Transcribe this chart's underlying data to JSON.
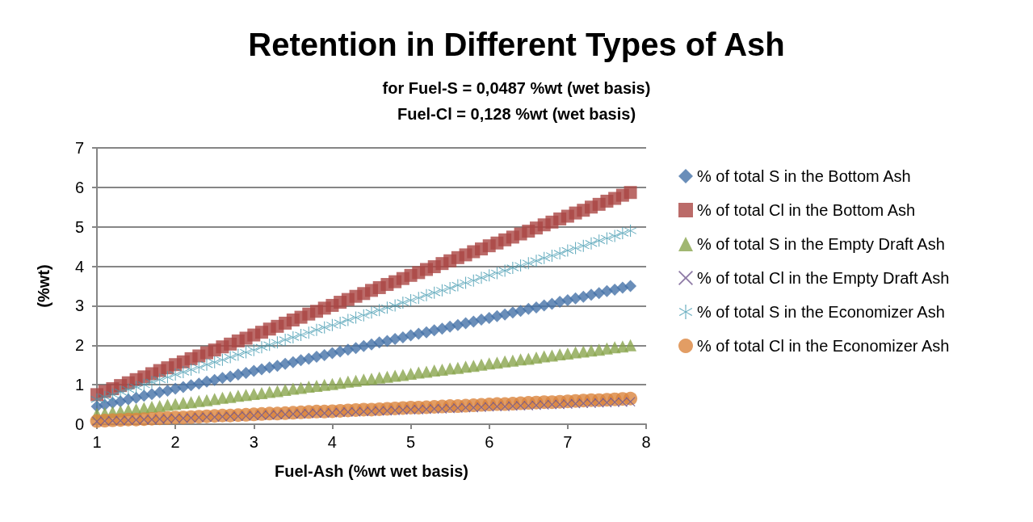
{
  "chart_data": {
    "type": "scatter",
    "title": "Retention in Different Types of Ash",
    "subtitle": "for Fuel-S = 0,0487 %wt (wet basis)\nFuel-Cl = 0,128 %wt (wet basis)",
    "xlabel": "Fuel-Ash (%wt wet basis)",
    "ylabel": "(%wt)",
    "x": [
      1.0,
      1.1,
      1.2,
      1.3,
      1.4,
      1.5,
      1.6,
      1.7,
      1.8,
      1.9,
      2.0,
      2.1,
      2.2,
      2.3,
      2.4,
      2.5,
      2.6,
      2.7,
      2.8,
      2.9,
      3.0,
      3.1,
      3.2,
      3.3,
      3.4,
      3.5,
      3.6,
      3.7,
      3.8,
      3.9,
      4.0,
      4.1,
      4.2,
      4.3,
      4.4,
      4.5,
      4.6,
      4.7,
      4.8,
      4.9,
      5.0,
      5.1,
      5.2,
      5.3,
      5.4,
      5.5,
      5.6,
      5.7,
      5.8,
      5.9,
      6.0,
      6.1,
      6.2,
      6.3,
      6.4,
      6.5,
      6.6,
      6.7,
      6.8,
      6.9,
      7.0,
      7.1,
      7.2,
      7.3,
      7.4,
      7.5,
      7.6,
      7.7,
      7.8
    ],
    "series": [
      {
        "name": "% of total S in the Bottom Ash",
        "color": "#4572a7",
        "marker": "diamond",
        "values": [
          0.45,
          0.49,
          0.54,
          0.58,
          0.63,
          0.67,
          0.72,
          0.76,
          0.81,
          0.85,
          0.9,
          0.94,
          0.99,
          1.03,
          1.08,
          1.12,
          1.17,
          1.21,
          1.26,
          1.3,
          1.35,
          1.39,
          1.44,
          1.48,
          1.53,
          1.57,
          1.62,
          1.66,
          1.71,
          1.75,
          1.8,
          1.84,
          1.89,
          1.93,
          1.98,
          2.02,
          2.07,
          2.11,
          2.16,
          2.2,
          2.25,
          2.29,
          2.33,
          2.38,
          2.42,
          2.47,
          2.51,
          2.56,
          2.6,
          2.65,
          2.69,
          2.74,
          2.78,
          2.83,
          2.87,
          2.92,
          2.96,
          3.01,
          3.05,
          3.1,
          3.14,
          3.19,
          3.23,
          3.28,
          3.32,
          3.37,
          3.41,
          3.46,
          3.5
        ]
      },
      {
        "name": "% of total Cl in the Bottom Ash",
        "color": "#aa4643",
        "marker": "square",
        "values": [
          0.75,
          0.83,
          0.9,
          0.98,
          1.05,
          1.13,
          1.2,
          1.28,
          1.36,
          1.43,
          1.51,
          1.58,
          1.66,
          1.73,
          1.81,
          1.88,
          1.96,
          2.03,
          2.11,
          2.18,
          2.26,
          2.33,
          2.41,
          2.48,
          2.56,
          2.64,
          2.71,
          2.79,
          2.86,
          2.94,
          3.01,
          3.09,
          3.16,
          3.24,
          3.31,
          3.39,
          3.46,
          3.54,
          3.61,
          3.69,
          3.77,
          3.84,
          3.92,
          3.99,
          4.07,
          4.14,
          4.22,
          4.29,
          4.37,
          4.44,
          4.52,
          4.59,
          4.67,
          4.74,
          4.82,
          4.89,
          4.97,
          5.05,
          5.12,
          5.2,
          5.27,
          5.35,
          5.42,
          5.5,
          5.57,
          5.65,
          5.72,
          5.8,
          5.87
        ]
      },
      {
        "name": "% of total S in the Empty Draft Ash",
        "color": "#89a54e",
        "marker": "triangle",
        "values": [
          0.26,
          0.28,
          0.31,
          0.33,
          0.36,
          0.38,
          0.41,
          0.44,
          0.46,
          0.49,
          0.51,
          0.54,
          0.56,
          0.59,
          0.61,
          0.64,
          0.67,
          0.69,
          0.72,
          0.74,
          0.77,
          0.79,
          0.82,
          0.84,
          0.87,
          0.9,
          0.92,
          0.95,
          0.97,
          1.0,
          1.02,
          1.05,
          1.08,
          1.1,
          1.13,
          1.15,
          1.18,
          1.2,
          1.23,
          1.25,
          1.28,
          1.31,
          1.33,
          1.36,
          1.38,
          1.41,
          1.43,
          1.46,
          1.48,
          1.51,
          1.54,
          1.56,
          1.59,
          1.61,
          1.64,
          1.66,
          1.69,
          1.72,
          1.74,
          1.77,
          1.79,
          1.82,
          1.84,
          1.87,
          1.89,
          1.92,
          1.95,
          1.97,
          2.0
        ]
      },
      {
        "name": "% of total Cl in the Empty Draft Ash",
        "color": "#71588f",
        "marker": "cross",
        "values": [
          0.07,
          0.08,
          0.09,
          0.09,
          0.1,
          0.11,
          0.12,
          0.12,
          0.13,
          0.14,
          0.15,
          0.15,
          0.16,
          0.17,
          0.18,
          0.18,
          0.19,
          0.2,
          0.2,
          0.21,
          0.22,
          0.23,
          0.23,
          0.24,
          0.25,
          0.26,
          0.26,
          0.27,
          0.28,
          0.28,
          0.29,
          0.3,
          0.31,
          0.31,
          0.32,
          0.33,
          0.34,
          0.34,
          0.35,
          0.36,
          0.37,
          0.37,
          0.38,
          0.39,
          0.39,
          0.4,
          0.41,
          0.42,
          0.42,
          0.43,
          0.44,
          0.45,
          0.45,
          0.46,
          0.47,
          0.47,
          0.48,
          0.49,
          0.5,
          0.5,
          0.51,
          0.52,
          0.53,
          0.53,
          0.54,
          0.55,
          0.56,
          0.56,
          0.57
        ]
      },
      {
        "name": "% of total S in the Economizer Ash",
        "color": "#4198af",
        "marker": "star",
        "values": [
          0.63,
          0.69,
          0.75,
          0.82,
          0.88,
          0.94,
          1.0,
          1.07,
          1.13,
          1.19,
          1.26,
          1.32,
          1.38,
          1.44,
          1.51,
          1.57,
          1.63,
          1.7,
          1.76,
          1.82,
          1.88,
          1.95,
          2.01,
          2.07,
          2.14,
          2.2,
          2.26,
          2.32,
          2.39,
          2.45,
          2.51,
          2.57,
          2.64,
          2.7,
          2.76,
          2.83,
          2.89,
          2.95,
          3.01,
          3.08,
          3.14,
          3.2,
          3.27,
          3.33,
          3.39,
          3.45,
          3.52,
          3.58,
          3.64,
          3.71,
          3.77,
          3.83,
          3.89,
          3.96,
          4.02,
          4.08,
          4.14,
          4.21,
          4.27,
          4.33,
          4.4,
          4.46,
          4.52,
          4.58,
          4.65,
          4.71,
          4.77,
          4.84,
          4.9
        ]
      },
      {
        "name": "% of total Cl in the Economizer Ash",
        "color": "#db843d",
        "marker": "circle",
        "values": [
          0.08,
          0.09,
          0.1,
          0.11,
          0.12,
          0.12,
          0.13,
          0.14,
          0.15,
          0.16,
          0.17,
          0.17,
          0.18,
          0.19,
          0.2,
          0.21,
          0.22,
          0.22,
          0.23,
          0.24,
          0.25,
          0.26,
          0.27,
          0.27,
          0.28,
          0.29,
          0.3,
          0.31,
          0.32,
          0.32,
          0.33,
          0.34,
          0.35,
          0.36,
          0.37,
          0.37,
          0.38,
          0.39,
          0.4,
          0.41,
          0.42,
          0.42,
          0.43,
          0.44,
          0.45,
          0.46,
          0.46,
          0.47,
          0.48,
          0.49,
          0.5,
          0.51,
          0.51,
          0.52,
          0.53,
          0.54,
          0.55,
          0.56,
          0.56,
          0.57,
          0.58,
          0.59,
          0.6,
          0.61,
          0.61,
          0.62,
          0.63,
          0.64,
          0.65
        ]
      }
    ],
    "xlim": [
      1,
      8
    ],
    "xticks": [
      1,
      2,
      3,
      4,
      5,
      6,
      7,
      8
    ],
    "ylim": [
      0,
      7
    ],
    "yticks": [
      0,
      1,
      2,
      3,
      4,
      5,
      6,
      7
    ],
    "grid": "y",
    "legend": "right"
  }
}
